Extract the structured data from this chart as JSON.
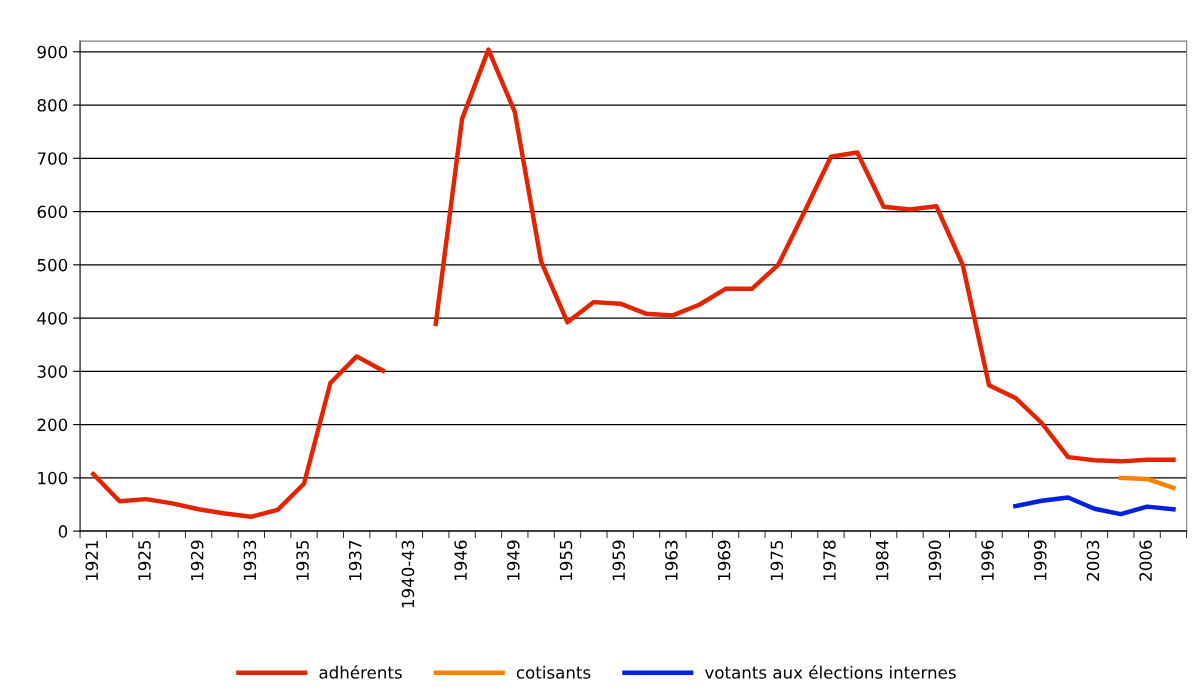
{
  "chart_data": {
    "type": "line",
    "categories": [
      "1921",
      null,
      "1925",
      null,
      "1929",
      null,
      "1933",
      null,
      "1935",
      null,
      "1937",
      null,
      "1940-43",
      null,
      "1946",
      null,
      "1949",
      null,
      "1955",
      null,
      "1959",
      null,
      "1963",
      null,
      "1969",
      null,
      "1975",
      null,
      "1978",
      null,
      "1984",
      null,
      "1990",
      null,
      "1996",
      null,
      "1999",
      null,
      "2003",
      null,
      "2006",
      null
    ],
    "series": [
      {
        "name": "adhérents",
        "color": "#e32400",
        "values": [
          107,
          56,
          60,
          52,
          41,
          33,
          27,
          40,
          89,
          278,
          328,
          301,
          null,
          389,
          774,
          904,
          787,
          506,
          392,
          430,
          427,
          408,
          405,
          425,
          455,
          455,
          500,
          600,
          703,
          711,
          609,
          604,
          610,
          500,
          274,
          250,
          203,
          139,
          133,
          131,
          134,
          134
        ]
      },
      {
        "name": "cotisants",
        "color": "#ff8000",
        "values": [
          null,
          null,
          null,
          null,
          null,
          null,
          null,
          null,
          null,
          null,
          null,
          null,
          null,
          null,
          null,
          null,
          null,
          null,
          null,
          null,
          null,
          null,
          null,
          null,
          null,
          null,
          null,
          null,
          null,
          null,
          null,
          null,
          null,
          null,
          null,
          null,
          null,
          null,
          null,
          100,
          98,
          81
        ]
      },
      {
        "name": "votants aux élections internes",
        "color": "#0020e0",
        "values": [
          null,
          null,
          null,
          null,
          null,
          null,
          null,
          null,
          null,
          null,
          null,
          null,
          null,
          null,
          null,
          null,
          null,
          null,
          null,
          null,
          null,
          null,
          null,
          null,
          null,
          null,
          null,
          null,
          null,
          null,
          null,
          null,
          null,
          null,
          null,
          47,
          57,
          63,
          42,
          32,
          46,
          41
        ]
      }
    ],
    "ylim": [
      0,
      920
    ],
    "yticks": [
      0,
      100,
      200,
      300,
      400,
      500,
      600,
      700,
      800,
      900
    ],
    "grid": "y",
    "legend": "bottom",
    "line_style": "solid",
    "marker": "none"
  }
}
